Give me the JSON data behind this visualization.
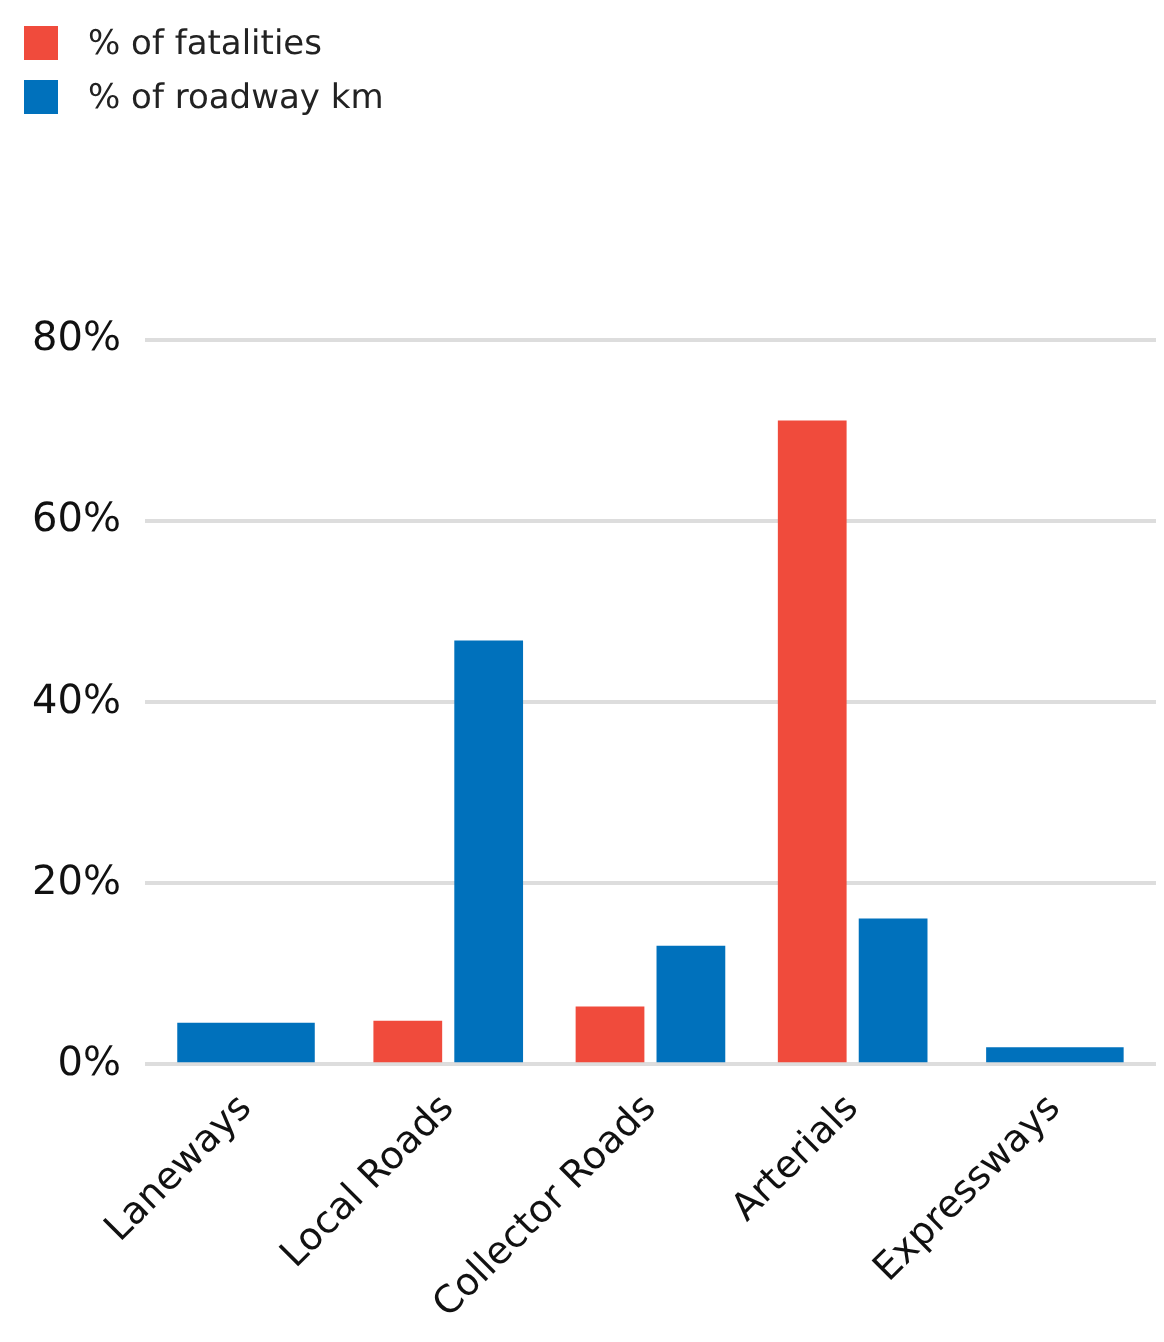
{
  "chart_data": {
    "type": "bar",
    "categories": [
      "Laneways",
      "Local Roads",
      "Collector Roads",
      "Arterials",
      "Expressways"
    ],
    "series": [
      {
        "name": "% of fatalities",
        "color": "#f04b3c",
        "values": [
          null,
          4.8,
          6.4,
          71.1,
          null
        ]
      },
      {
        "name": "% of roadway km",
        "color": "#0071bc",
        "values": [
          4.6,
          46.8,
          13.1,
          16.1,
          1.9
        ]
      }
    ],
    "ylim": [
      0,
      80
    ],
    "yticks": [
      {
        "value": 0,
        "label": "0%"
      },
      {
        "value": 20,
        "label": "20%"
      },
      {
        "value": 40,
        "label": "40%"
      },
      {
        "value": 60,
        "label": "60%"
      },
      {
        "value": 80,
        "label": "80%"
      }
    ],
    "grid": "y",
    "legend": "top left"
  }
}
